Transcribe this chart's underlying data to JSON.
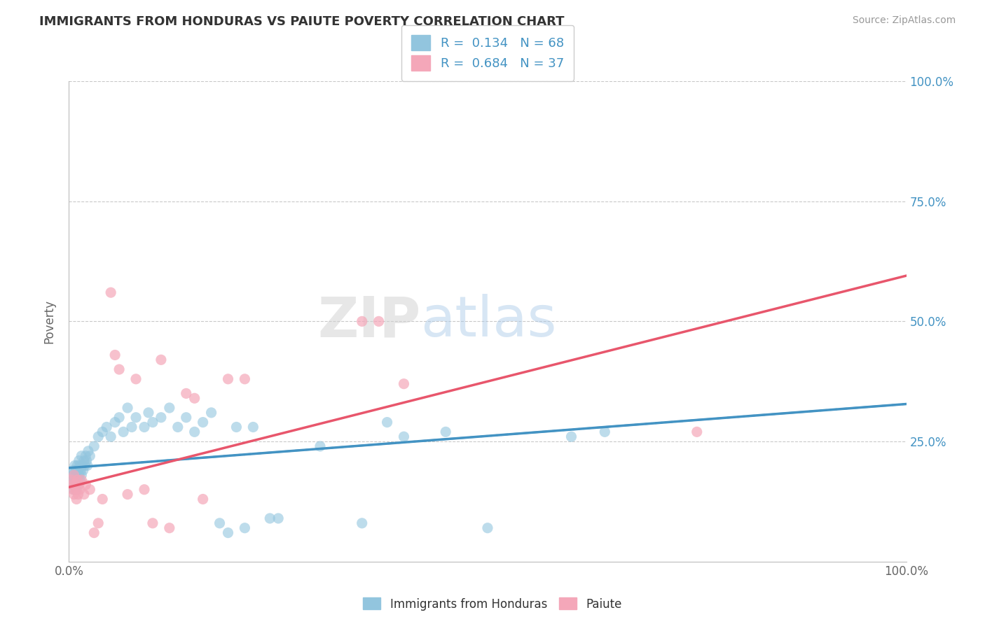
{
  "title": "IMMIGRANTS FROM HONDURAS VS PAIUTE POVERTY CORRELATION CHART",
  "source": "Source: ZipAtlas.com",
  "ylabel": "Poverty",
  "legend_label1": "Immigrants from Honduras",
  "legend_label2": "Paiute",
  "r1": 0.134,
  "n1": 68,
  "r2": 0.684,
  "n2": 37,
  "color_blue": "#92c5de",
  "color_pink": "#f4a7b9",
  "color_blue_line": "#4393c3",
  "color_pink_line": "#e8566c",
  "color_text_blue": "#4393c3",
  "xlim": [
    0.0,
    1.0
  ],
  "ylim": [
    0.0,
    1.0
  ],
  "grid_color": "#cccccc",
  "blue_points": [
    [
      0.003,
      0.18
    ],
    [
      0.004,
      0.16
    ],
    [
      0.005,
      0.17
    ],
    [
      0.005,
      0.19
    ],
    [
      0.006,
      0.15
    ],
    [
      0.006,
      0.18
    ],
    [
      0.007,
      0.16
    ],
    [
      0.007,
      0.2
    ],
    [
      0.008,
      0.17
    ],
    [
      0.008,
      0.19
    ],
    [
      0.009,
      0.15
    ],
    [
      0.009,
      0.18
    ],
    [
      0.01,
      0.17
    ],
    [
      0.01,
      0.2
    ],
    [
      0.011,
      0.16
    ],
    [
      0.011,
      0.19
    ],
    [
      0.012,
      0.18
    ],
    [
      0.012,
      0.21
    ],
    [
      0.013,
      0.17
    ],
    [
      0.013,
      0.2
    ],
    [
      0.014,
      0.19
    ],
    [
      0.015,
      0.18
    ],
    [
      0.015,
      0.22
    ],
    [
      0.016,
      0.2
    ],
    [
      0.017,
      0.19
    ],
    [
      0.018,
      0.21
    ],
    [
      0.019,
      0.2
    ],
    [
      0.02,
      0.22
    ],
    [
      0.021,
      0.21
    ],
    [
      0.022,
      0.2
    ],
    [
      0.023,
      0.23
    ],
    [
      0.025,
      0.22
    ],
    [
      0.03,
      0.24
    ],
    [
      0.035,
      0.26
    ],
    [
      0.04,
      0.27
    ],
    [
      0.045,
      0.28
    ],
    [
      0.05,
      0.26
    ],
    [
      0.055,
      0.29
    ],
    [
      0.06,
      0.3
    ],
    [
      0.065,
      0.27
    ],
    [
      0.07,
      0.32
    ],
    [
      0.075,
      0.28
    ],
    [
      0.08,
      0.3
    ],
    [
      0.09,
      0.28
    ],
    [
      0.095,
      0.31
    ],
    [
      0.1,
      0.29
    ],
    [
      0.11,
      0.3
    ],
    [
      0.12,
      0.32
    ],
    [
      0.13,
      0.28
    ],
    [
      0.14,
      0.3
    ],
    [
      0.15,
      0.27
    ],
    [
      0.16,
      0.29
    ],
    [
      0.17,
      0.31
    ],
    [
      0.18,
      0.08
    ],
    [
      0.19,
      0.06
    ],
    [
      0.2,
      0.28
    ],
    [
      0.21,
      0.07
    ],
    [
      0.22,
      0.28
    ],
    [
      0.24,
      0.09
    ],
    [
      0.25,
      0.09
    ],
    [
      0.3,
      0.24
    ],
    [
      0.35,
      0.08
    ],
    [
      0.38,
      0.29
    ],
    [
      0.4,
      0.26
    ],
    [
      0.45,
      0.27
    ],
    [
      0.5,
      0.07
    ],
    [
      0.6,
      0.26
    ],
    [
      0.64,
      0.27
    ]
  ],
  "pink_points": [
    [
      0.003,
      0.17
    ],
    [
      0.004,
      0.16
    ],
    [
      0.005,
      0.15
    ],
    [
      0.006,
      0.18
    ],
    [
      0.006,
      0.14
    ],
    [
      0.007,
      0.16
    ],
    [
      0.008,
      0.15
    ],
    [
      0.009,
      0.13
    ],
    [
      0.01,
      0.17
    ],
    [
      0.011,
      0.14
    ],
    [
      0.012,
      0.16
    ],
    [
      0.013,
      0.15
    ],
    [
      0.015,
      0.17
    ],
    [
      0.018,
      0.14
    ],
    [
      0.02,
      0.16
    ],
    [
      0.025,
      0.15
    ],
    [
      0.03,
      0.06
    ],
    [
      0.035,
      0.08
    ],
    [
      0.04,
      0.13
    ],
    [
      0.05,
      0.56
    ],
    [
      0.055,
      0.43
    ],
    [
      0.06,
      0.4
    ],
    [
      0.07,
      0.14
    ],
    [
      0.08,
      0.38
    ],
    [
      0.09,
      0.15
    ],
    [
      0.1,
      0.08
    ],
    [
      0.11,
      0.42
    ],
    [
      0.12,
      0.07
    ],
    [
      0.14,
      0.35
    ],
    [
      0.15,
      0.34
    ],
    [
      0.16,
      0.13
    ],
    [
      0.19,
      0.38
    ],
    [
      0.21,
      0.38
    ],
    [
      0.35,
      0.5
    ],
    [
      0.37,
      0.5
    ],
    [
      0.4,
      0.37
    ],
    [
      0.75,
      0.27
    ]
  ],
  "ytick_labels": [
    "25.0%",
    "50.0%",
    "75.0%",
    "100.0%"
  ],
  "ytick_values": [
    0.25,
    0.5,
    0.75,
    1.0
  ],
  "blue_regr": [
    0.0,
    0.195,
    1.0,
    0.328
  ],
  "pink_regr": [
    0.0,
    0.155,
    1.0,
    0.595
  ]
}
